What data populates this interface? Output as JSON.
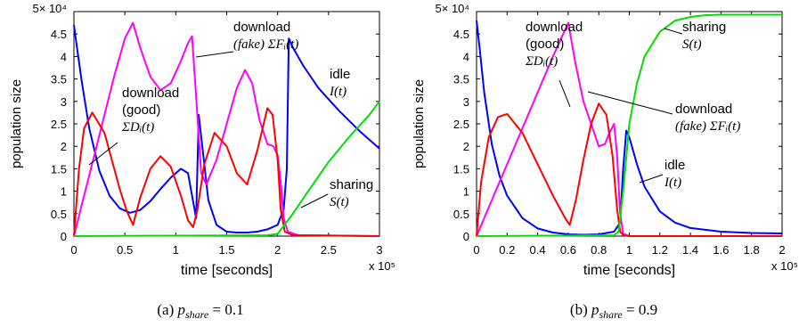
{
  "panels": [
    {
      "caption": "(a)",
      "caption_math": "p_share = 0.1",
      "chart_data": {
        "type": "line",
        "xlabel": "time [seconds]",
        "ylabel": "population size",
        "x_multiplier": "x 10⁵",
        "y_multiplier": "5× 10⁴",
        "xlim": [
          0,
          3
        ],
        "ylim": [
          0,
          5
        ],
        "xticks": [
          "0",
          "0.5",
          "1",
          "1.5",
          "2",
          "2.5",
          "3"
        ],
        "yticks": [
          "0",
          "0.5",
          "1",
          "1.5",
          "2",
          "2.5",
          "3",
          "3.5",
          "4",
          "4.5",
          ""
        ],
        "series": [
          {
            "key": "idle",
            "color": "#0000ff",
            "x": [
              0,
              0.03,
              0.08,
              0.15,
              0.25,
              0.35,
              0.45,
              0.55,
              0.65,
              0.75,
              0.85,
              0.95,
              1.05,
              1.12,
              1.16,
              1.2,
              1.225,
              1.26,
              1.32,
              1.4,
              1.5,
              1.6,
              1.7,
              1.8,
              1.9,
              2.0,
              2.06,
              2.09,
              2.11,
              2.15,
              2.25,
              2.4,
              2.6,
              2.8,
              3.0
            ],
            "y": [
              4.7,
              4.2,
              3.4,
              2.4,
              1.45,
              0.9,
              0.62,
              0.52,
              0.58,
              0.78,
              1.05,
              1.3,
              1.5,
              1.4,
              0.9,
              0.4,
              2.7,
              2.0,
              0.8,
              0.25,
              0.1,
              0.08,
              0.08,
              0.1,
              0.15,
              0.25,
              0.6,
              1.5,
              4.4,
              4.2,
              3.8,
              3.3,
              2.8,
              2.35,
              1.95
            ]
          },
          {
            "key": "download_fake",
            "color": "#ff00ff",
            "x": [
              0,
              0.1,
              0.2,
              0.3,
              0.4,
              0.5,
              0.58,
              0.65,
              0.75,
              0.85,
              0.95,
              1.05,
              1.12,
              1.16,
              1.2,
              1.25,
              1.3,
              1.4,
              1.5,
              1.6,
              1.68,
              1.75,
              1.82,
              1.9,
              1.96,
              2.0,
              2.03,
              2.06,
              2.1,
              2.2,
              3.0
            ],
            "y": [
              0,
              0.9,
              1.8,
              2.7,
              3.6,
              4.4,
              4.75,
              4.2,
              3.55,
              3.25,
              3.4,
              3.9,
              4.3,
              4.45,
              3.1,
              1.4,
              1.15,
              1.7,
              2.5,
              3.3,
              3.7,
              3.4,
              2.6,
              2.05,
              2.0,
              1.8,
              1.2,
              0.4,
              0.1,
              0.02,
              0.0
            ]
          },
          {
            "key": "download_good",
            "color": "#ff0000",
            "x": [
              0,
              0.05,
              0.1,
              0.18,
              0.3,
              0.45,
              0.52,
              0.58,
              0.65,
              0.75,
              0.85,
              0.95,
              1.05,
              1.12,
              1.17,
              1.21,
              1.28,
              1.38,
              1.5,
              1.6,
              1.7,
              1.8,
              1.9,
              1.95,
              2.0,
              2.03,
              2.07,
              2.15,
              3.0
            ],
            "y": [
              0,
              1.5,
              2.4,
              2.75,
              2.3,
              1.05,
              0.55,
              0.25,
              0.85,
              1.5,
              1.78,
              1.55,
              0.9,
              0.35,
              0.2,
              0.55,
              1.6,
              2.3,
              2.0,
              1.4,
              1.15,
              1.9,
              2.85,
              2.7,
              1.7,
              0.6,
              0.1,
              0.02,
              0.0
            ]
          },
          {
            "key": "sharing",
            "color": "#00e000",
            "x": [
              0,
              1.9,
              2.0,
              2.05,
              2.15,
              2.3,
              2.5,
              2.7,
              2.9,
              3.0
            ],
            "y": [
              0,
              0.02,
              0.05,
              0.2,
              0.5,
              1.0,
              1.65,
              2.2,
              2.7,
              3.0
            ]
          }
        ],
        "annotations": [
          {
            "lines": [
              "download",
              "(fake) ΣFᵢ(t)"
            ]
          },
          {
            "lines": [
              "download",
              "(good)",
              "ΣDᵢ(t)"
            ]
          },
          {
            "lines": [
              "idle",
              "I(t)"
            ]
          },
          {
            "lines": [
              "sharing",
              "S(t)"
            ]
          }
        ]
      }
    },
    {
      "caption": "(b)",
      "caption_math": "p_share = 0.9",
      "chart_data": {
        "type": "line",
        "xlabel": "time [seconds]",
        "ylabel": "population size",
        "x_multiplier": "x 10⁵",
        "y_multiplier": "5× 10⁴",
        "xlim": [
          0,
          2
        ],
        "ylim": [
          0,
          5
        ],
        "xticks": [
          "0",
          "0.2",
          "0.4",
          "0.6",
          "0.8",
          "1",
          "1.2",
          "1.4",
          "1.6",
          "1.8",
          "2"
        ],
        "yticks": [
          "0",
          "0.5",
          "1",
          "1.5",
          "2",
          "2.5",
          "3",
          "3.5",
          "4",
          "4.5",
          ""
        ],
        "series": [
          {
            "key": "idle",
            "color": "#0000ff",
            "x": [
              0,
              0.02,
              0.05,
              0.1,
              0.15,
              0.2,
              0.3,
              0.4,
              0.5,
              0.6,
              0.7,
              0.8,
              0.9,
              0.94,
              0.96,
              0.98,
              1.0,
              1.05,
              1.1,
              1.2,
              1.3,
              1.4,
              1.6,
              1.8,
              2.0
            ],
            "y": [
              4.8,
              4.2,
              3.2,
              2.05,
              1.35,
              0.9,
              0.4,
              0.17,
              0.08,
              0.04,
              0.03,
              0.04,
              0.1,
              0.3,
              1.5,
              2.35,
              2.2,
              1.6,
              1.1,
              0.55,
              0.3,
              0.18,
              0.1,
              0.07,
              0.06
            ]
          },
          {
            "key": "download_fake",
            "color": "#ff00ff",
            "x": [
              0,
              0.1,
              0.2,
              0.3,
              0.4,
              0.5,
              0.6,
              0.65,
              0.7,
              0.75,
              0.8,
              0.84,
              0.87,
              0.9,
              0.92,
              0.94,
              0.96,
              1.0,
              2.0
            ],
            "y": [
              0,
              0.8,
              1.6,
              2.4,
              3.2,
              4.0,
              4.75,
              3.8,
              3.0,
              2.5,
              2.0,
              2.05,
              2.3,
              2.5,
              1.8,
              0.5,
              0.05,
              0.0,
              0.0
            ]
          },
          {
            "key": "download_good",
            "color": "#ff0000",
            "x": [
              0,
              0.03,
              0.08,
              0.14,
              0.2,
              0.3,
              0.4,
              0.5,
              0.58,
              0.61,
              0.65,
              0.7,
              0.75,
              0.8,
              0.85,
              0.89,
              0.92,
              0.94,
              0.96,
              1.0,
              2.0
            ],
            "y": [
              0,
              1.2,
              2.2,
              2.65,
              2.72,
              2.3,
              1.6,
              0.9,
              0.4,
              0.25,
              0.8,
              1.7,
              2.5,
              2.95,
              2.7,
              1.8,
              0.6,
              0.1,
              0.02,
              0.0,
              0.0
            ]
          },
          {
            "key": "sharing",
            "color": "#00e000",
            "x": [
              0,
              0.9,
              0.93,
              0.96,
              1.0,
              1.05,
              1.1,
              1.2,
              1.3,
              1.4,
              1.5,
              1.6,
              2.0
            ],
            "y": [
              0,
              0.02,
              0.1,
              1.0,
              2.5,
              3.4,
              4.0,
              4.55,
              4.8,
              4.88,
              4.92,
              4.93,
              4.93
            ]
          }
        ],
        "annotations": [
          {
            "lines": [
              "download",
              "(good)",
              "ΣDᵢ(t)"
            ]
          },
          {
            "lines": [
              "sharing",
              "S(t)"
            ]
          },
          {
            "lines": [
              "download",
              "(fake) ΣFᵢ(t)"
            ]
          },
          {
            "lines": [
              "idle",
              "I(t)"
            ]
          }
        ]
      }
    }
  ]
}
